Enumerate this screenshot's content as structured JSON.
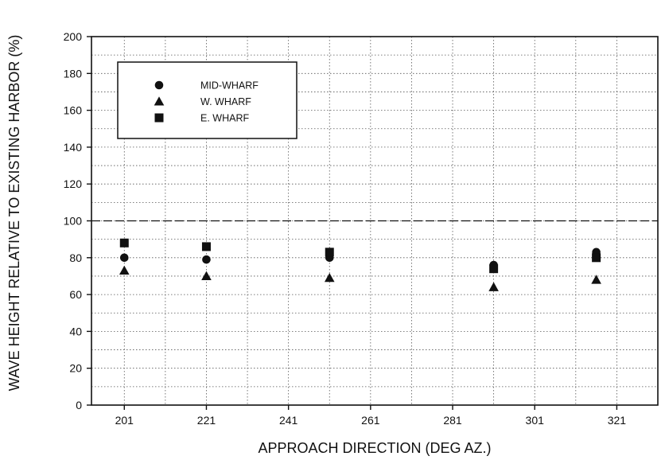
{
  "chart_data": {
    "type": "scatter",
    "xlabel": "APPROACH DIRECTION (DEG AZ.)",
    "ylabel": "WAVE HEIGHT RELATIVE TO EXISTING HARBOR (%)",
    "xlim": [
      193,
      331
    ],
    "ylim": [
      0,
      200
    ],
    "x_ticks": [
      201,
      221,
      241,
      261,
      281,
      301,
      321
    ],
    "y_ticks": [
      0,
      20,
      40,
      60,
      80,
      100,
      120,
      140,
      160,
      180,
      200
    ],
    "x_grid_every": 10,
    "y_grid_every": 10,
    "grid": true,
    "legend_position": "top-left",
    "reference_line": {
      "y": 100,
      "style": "dashed"
    },
    "series": [
      {
        "name": "MID-WHARF",
        "marker": "circle",
        "x": [
          201,
          221,
          251,
          291,
          316
        ],
        "y": [
          80,
          79,
          80,
          76,
          83
        ]
      },
      {
        "name": "W. WHARF",
        "marker": "triangle",
        "x": [
          201,
          221,
          251,
          291,
          316
        ],
        "y": [
          73,
          70,
          69,
          64,
          68
        ]
      },
      {
        "name": "E. WHARF",
        "marker": "square",
        "x": [
          201,
          221,
          251,
          291,
          316
        ],
        "y": [
          88,
          86,
          83,
          74,
          80
        ]
      }
    ],
    "color": "#111111"
  }
}
